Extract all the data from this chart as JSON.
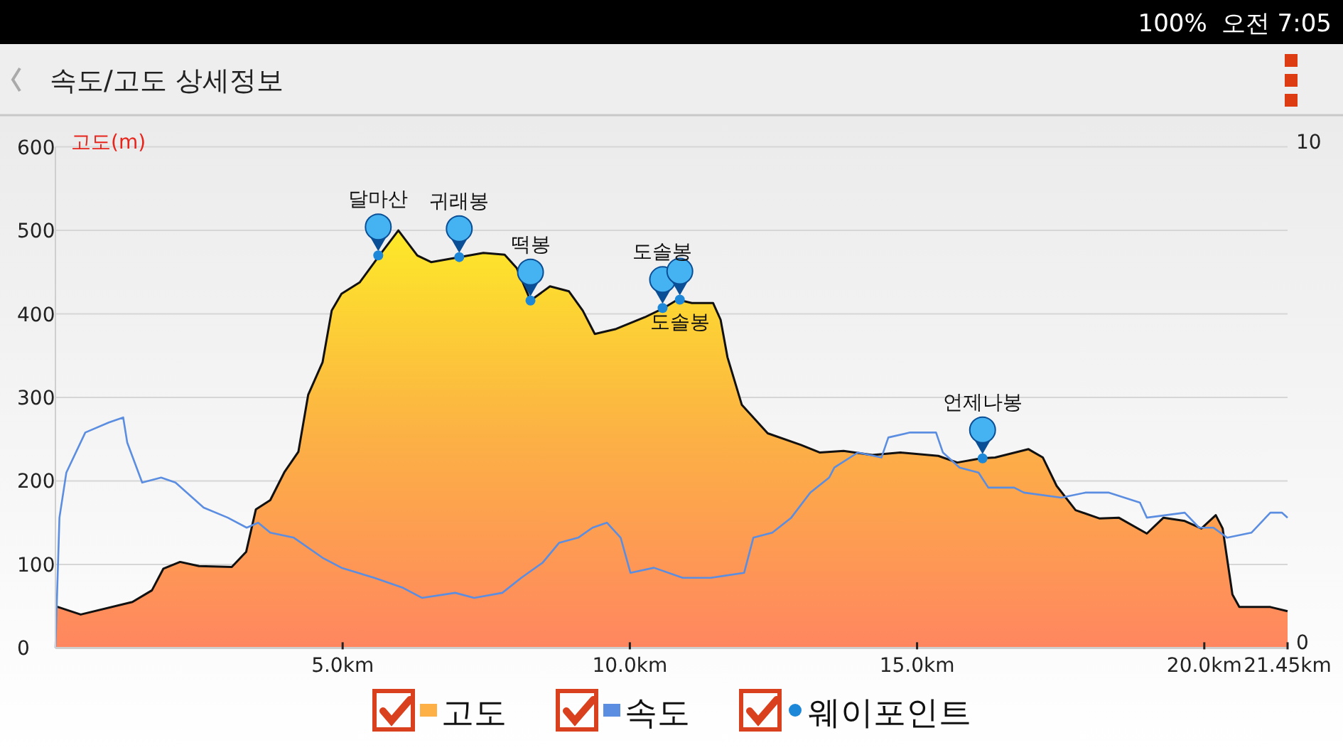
{
  "chart_data": {
    "type": "area",
    "title": "속도/고도 상세정보",
    "ylabel": "고도(m)",
    "xlim": [
      0,
      21.45
    ],
    "xticks": [
      {
        "value": 5,
        "label": "5.0km"
      },
      {
        "value": 10,
        "label": "10.0km"
      },
      {
        "value": 15,
        "label": "15.0km"
      },
      {
        "value": 20,
        "label": "20.0km"
      },
      {
        "value": 21.45,
        "label": "21.45km"
      }
    ],
    "ylim": [
      0,
      600
    ],
    "yticks": [
      0,
      100,
      200,
      300,
      400,
      500,
      600
    ],
    "y2lim": [
      0,
      10
    ],
    "y2ticks": [
      0,
      10
    ],
    "grid": "y",
    "legend": "bottom",
    "series": [
      {
        "name": "고도",
        "color": "#fcb045",
        "x": [
          0,
          0.44,
          1.34,
          1.68,
          1.88,
          2.17,
          2.5,
          3.07,
          3.32,
          3.49,
          3.74,
          3.99,
          4.23,
          4.4,
          4.65,
          4.81,
          4.98,
          5.3,
          5.64,
          5.97,
          6.3,
          6.54,
          6.96,
          7.45,
          7.82,
          8.03,
          8.27,
          8.61,
          8.94,
          9.18,
          9.39,
          9.76,
          10.26,
          10.59,
          10.83,
          11.08,
          11.45,
          11.58,
          11.7,
          11.95,
          12.4,
          12.98,
          13.31,
          13.72,
          14.22,
          14.71,
          15.37,
          15.7,
          16.11,
          16.36,
          16.94,
          17.19,
          17.43,
          17.76,
          18.18,
          18.51,
          19,
          19.29,
          19.66,
          19.95,
          20.2,
          20.32,
          20.49,
          20.61,
          21.15,
          21.45
        ],
        "values": [
          50,
          40,
          55,
          69,
          95,
          103,
          98,
          97,
          115,
          166,
          177,
          211,
          235,
          303,
          342,
          404,
          424,
          438,
          470,
          500,
          470,
          462,
          467,
          473,
          471,
          455,
          416,
          433,
          427,
          404,
          376,
          382,
          396,
          407,
          417,
          413,
          413,
          393,
          348,
          291,
          257,
          243,
          234,
          236,
          231,
          234,
          230,
          222,
          227,
          228,
          238,
          228,
          194,
          165,
          155,
          156,
          137,
          156,
          152,
          143,
          159,
          143,
          64,
          49,
          49,
          44
        ]
      },
      {
        "name": "속도",
        "type": "line",
        "axis": "y2",
        "color": "#5b8de0",
        "x": [
          0,
          0.07,
          0.19,
          0.52,
          0.93,
          1.18,
          1.25,
          1.51,
          1.84,
          2.09,
          2.58,
          3,
          3.33,
          3.53,
          3.74,
          4.15,
          4.65,
          4.98,
          5.55,
          6.05,
          6.38,
          6.96,
          7.29,
          7.78,
          8.11,
          8.48,
          8.77,
          9.1,
          9.35,
          9.6,
          9.84,
          10.01,
          10.42,
          10.92,
          11.41,
          11.99,
          12.15,
          12.48,
          12.81,
          13.14,
          13.47,
          13.56,
          13.97,
          14.38,
          14.5,
          14.88,
          15.33,
          15.45,
          15.74,
          16.07,
          16.24,
          16.69,
          16.86,
          17.51,
          17.93,
          18.34,
          18.88,
          19,
          19.66,
          19.91,
          20.16,
          20.4,
          20.82,
          21.15,
          21.35,
          21.45
        ],
        "values": [
          0,
          2.6,
          3.5,
          4.3,
          4.5,
          4.6,
          4.1,
          3.3,
          3.4,
          3.3,
          2.8,
          2.6,
          2.4,
          2.5,
          2.3,
          2.2,
          1.8,
          1.6,
          1.4,
          1.2,
          1,
          1.1,
          1,
          1.1,
          1.4,
          1.7,
          2.1,
          2.2,
          2.4,
          2.5,
          2.2,
          1.5,
          1.6,
          1.4,
          1.4,
          1.5,
          2.2,
          2.3,
          2.6,
          3.1,
          3.4,
          3.6,
          3.9,
          3.8,
          4.2,
          4.3,
          4.3,
          3.9,
          3.6,
          3.5,
          3.2,
          3.2,
          3.1,
          3,
          3.1,
          3.1,
          2.9,
          2.6,
          2.7,
          2.4,
          2.4,
          2.2,
          2.3,
          2.7,
          2.7,
          2.6
        ]
      },
      {
        "name": "웨이포인트",
        "type": "scatter",
        "color": "#1e88d8",
        "x": [
          5.62,
          7.03,
          8.27,
          10.57,
          10.87,
          16.14
        ],
        "values": [
          470,
          468,
          416,
          407,
          417,
          227
        ]
      }
    ],
    "annotations": [
      {
        "text": "달마산",
        "x": 5.62,
        "y": 470
      },
      {
        "text": "귀래봉",
        "x": 7.03,
        "y": 468
      },
      {
        "text": "떡봉",
        "x": 8.27,
        "y": 416
      },
      {
        "text": "도솔봉",
        "x": 10.57,
        "y": 407
      },
      {
        "text": "도솔봉",
        "x": 10.87,
        "y": 417
      },
      {
        "text": "언제나봉",
        "x": 16.14,
        "y": 227
      },
      "100%",
      "오전 7:05"
    ]
  }
}
